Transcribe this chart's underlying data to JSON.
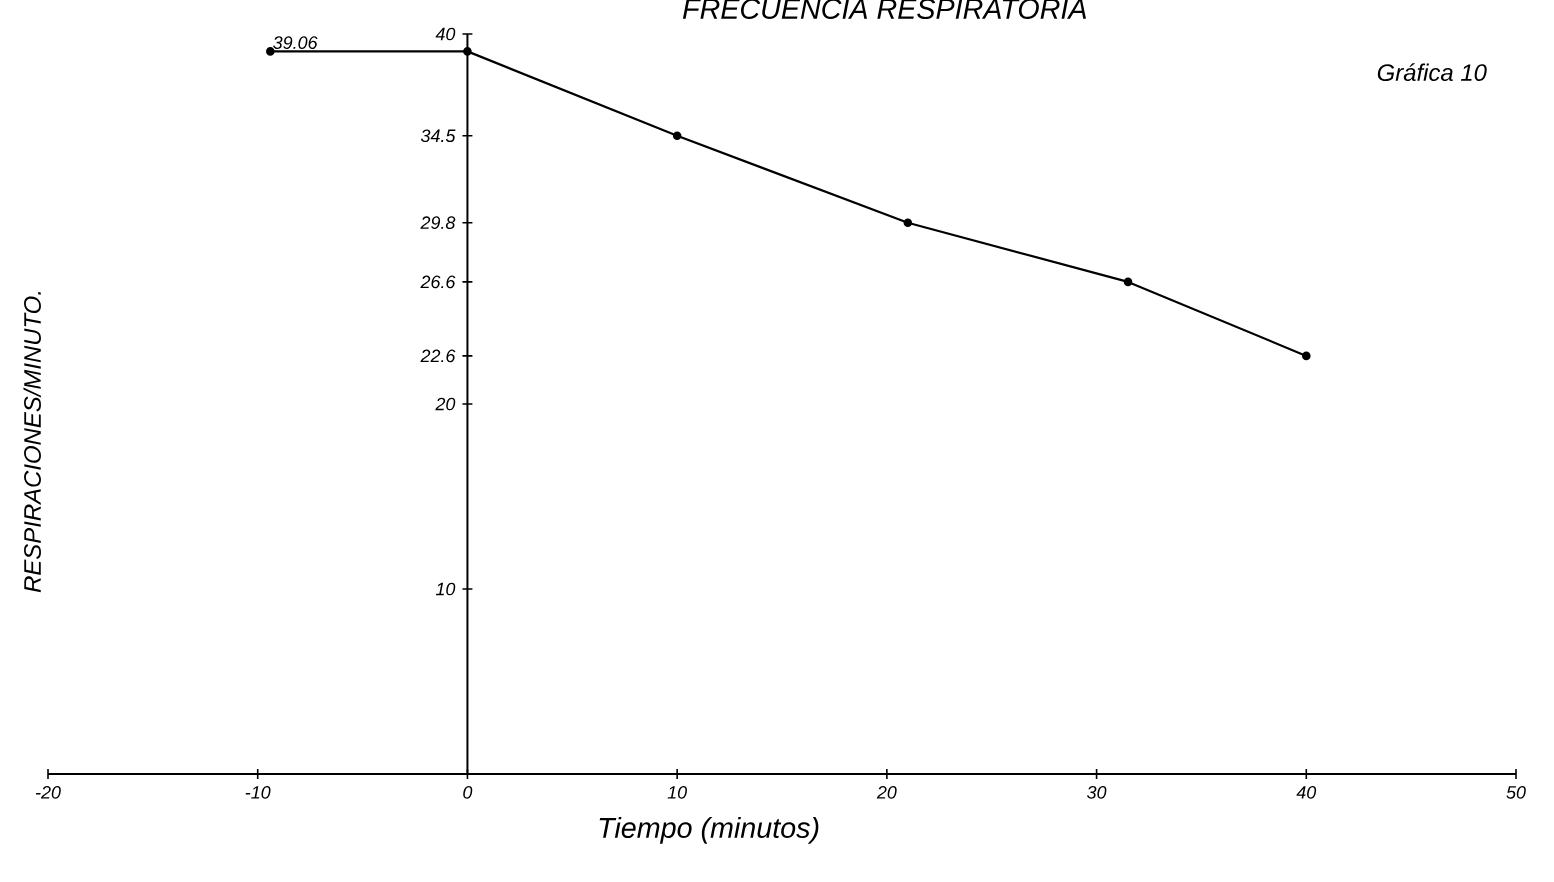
{
  "chart_data": {
    "type": "line",
    "title": "FRECUENCIA RESPIRATORIA",
    "xlabel": "Tiempo  (minutos)",
    "ylabel": "RESPIRACIONES/MINUTO.",
    "annotations": [
      "Gráfica 10",
      {
        "text": "39.06",
        "x": -9.4,
        "y": 39.06
      }
    ],
    "x": [
      -9.4,
      0,
      10,
      21,
      31.5,
      40
    ],
    "series": [
      {
        "color": "#000000",
        "values": [
          39.06,
          39.06,
          34.5,
          29.8,
          26.6,
          22.6
        ]
      }
    ],
    "xlim": [
      -20,
      50
    ],
    "ylim": [
      0,
      40
    ],
    "xticks": [
      -20,
      -10,
      0,
      10,
      20,
      30,
      40,
      50
    ],
    "yticks": [
      10,
      20,
      22.6,
      26.6,
      29.8,
      34.5,
      40
    ],
    "marker": "circle",
    "line_style": "solid"
  }
}
